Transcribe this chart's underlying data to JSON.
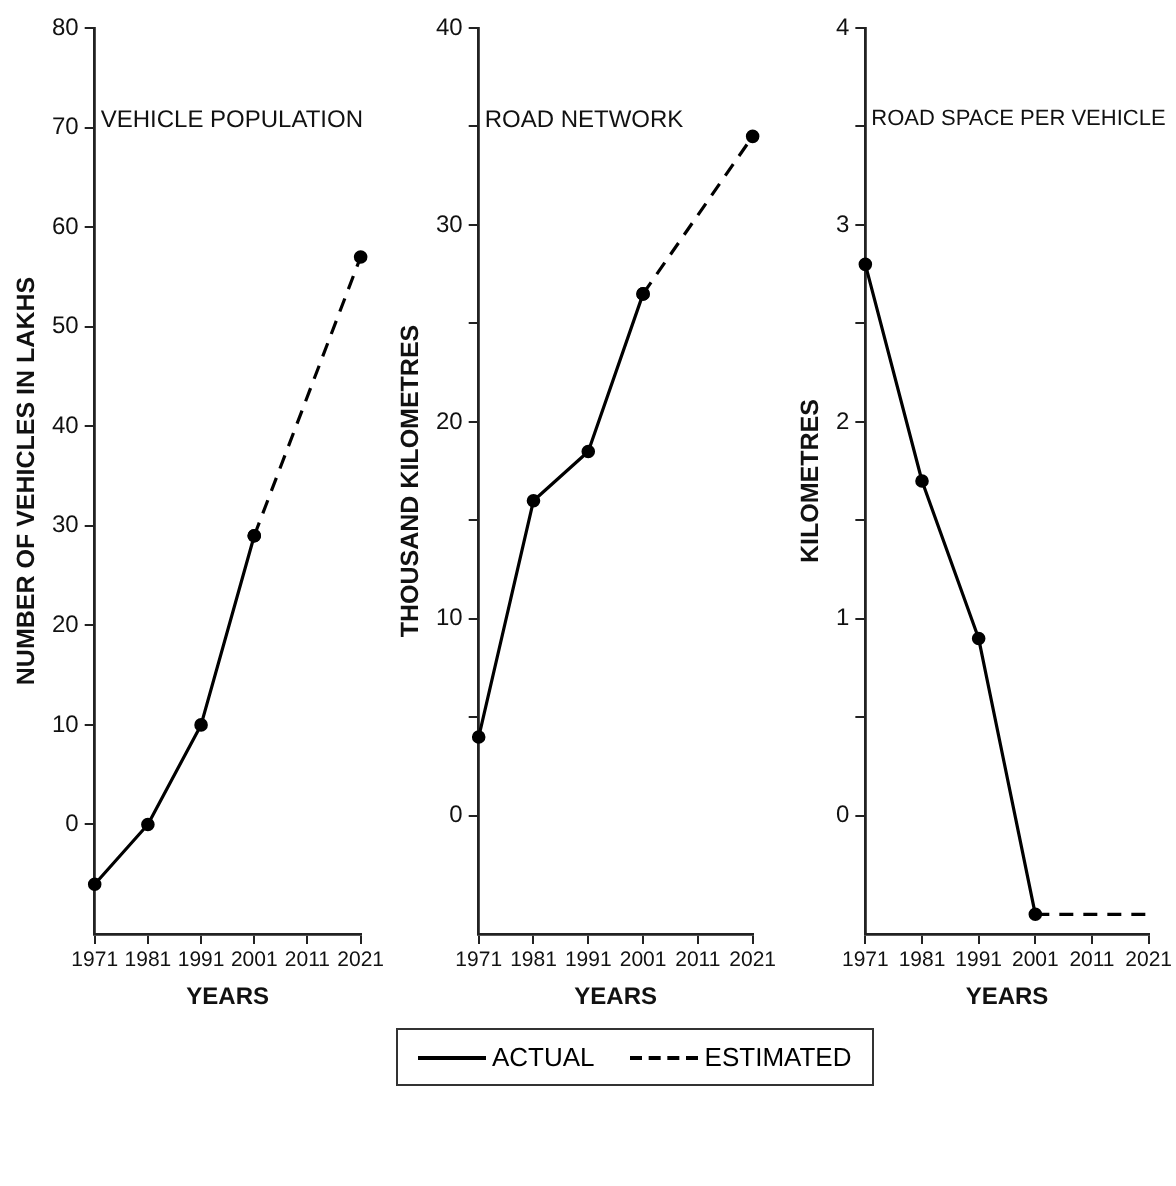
{
  "chart_data": [
    {
      "type": "line",
      "title": "VEHICLE POPULATION",
      "xlabel": "YEARS",
      "ylabel": "NUMBER OF VEHICLES IN LAKHS",
      "categories": [
        "1971",
        "1981",
        "1991",
        "2001",
        "2011",
        "2021"
      ],
      "ylim": [
        -11,
        80
      ],
      "yticks": [
        0,
        10,
        20,
        30,
        40,
        50,
        60,
        70,
        80
      ],
      "grid": false,
      "series": [
        {
          "color": "#000000",
          "line_style": "solid",
          "marker": "circle",
          "values": [
            -6,
            0,
            10,
            29,
            null,
            null
          ]
        },
        {
          "color": "#000000",
          "line_style": "dashed",
          "marker": "circle",
          "values": [
            null,
            null,
            null,
            29,
            null,
            57
          ]
        }
      ]
    },
    {
      "type": "line",
      "title": "ROAD NETWORK",
      "xlabel": "YEARS",
      "ylabel": "THOUSAND KILOMETRES",
      "categories": [
        "1971",
        "1981",
        "1991",
        "2001",
        "2011",
        "2021"
      ],
      "ylim": [
        -6,
        40
      ],
      "yticks": [
        0,
        {
          "value": 5,
          "label": null
        },
        10,
        {
          "value": 15,
          "label": null
        },
        20,
        {
          "value": 25,
          "label": null
        },
        30,
        {
          "value": 35,
          "label": null
        },
        40
      ],
      "grid": false,
      "legend": "bottom",
      "series": [
        {
          "name": "ACTUAL",
          "color": "#000000",
          "line_style": "solid",
          "marker": "circle",
          "values": [
            4,
            16,
            18.5,
            26.5,
            null,
            null
          ]
        },
        {
          "name": "ESTIMATED",
          "color": "#000000",
          "line_style": "dashed",
          "marker": "circle",
          "values": [
            null,
            null,
            null,
            26.5,
            null,
            34.5
          ]
        }
      ]
    },
    {
      "type": "line",
      "title": "ROAD SPACE PER VEHICLE",
      "xlabel": "YEARS",
      "ylabel": "KILOMETRES",
      "categories": [
        "1971",
        "1981",
        "1991",
        "2001",
        "2011",
        "2021"
      ],
      "ylim": [
        -0.6,
        4
      ],
      "yticks": [
        0,
        {
          "value": 0.5,
          "label": null
        },
        1,
        {
          "value": 1.5,
          "label": null
        },
        2,
        {
          "value": 2.5,
          "label": null
        },
        3,
        {
          "value": 3.5,
          "label": null
        },
        4
      ],
      "grid": false,
      "series": [
        {
          "color": "#000000",
          "line_style": "solid",
          "marker": "circle",
          "values": [
            2.8,
            1.7,
            0.9,
            -0.5,
            null,
            null
          ]
        },
        {
          "color": "#000000",
          "line_style": "dashed",
          "values": [
            null,
            null,
            null,
            -0.5,
            null,
            -0.5
          ]
        }
      ]
    }
  ]
}
